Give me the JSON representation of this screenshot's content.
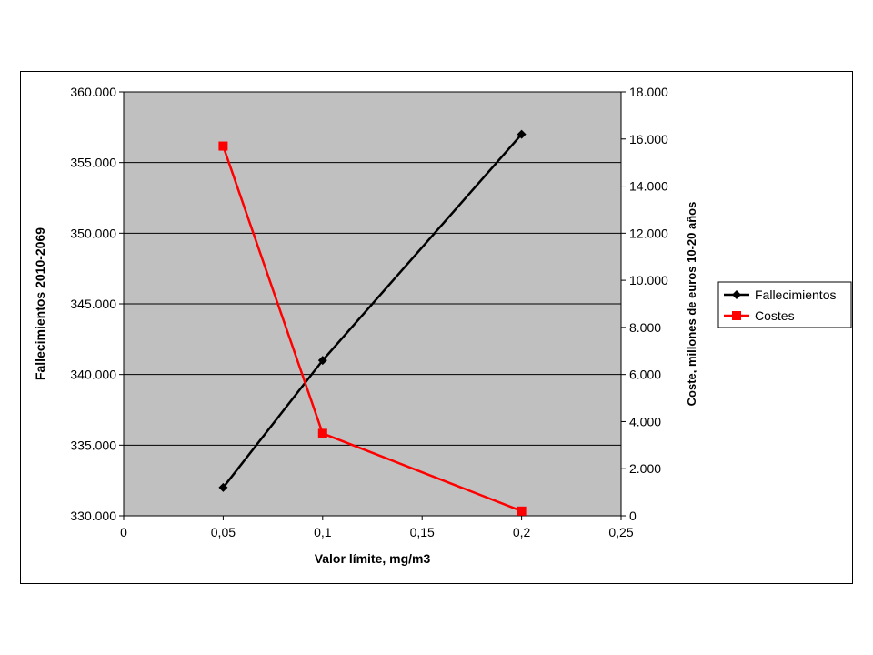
{
  "chart_data": {
    "type": "line",
    "xlabel": "Valor límite, mg/m3",
    "ylabel_left": "Fallecimientos 2010-2069",
    "ylabel_right": "Coste, millones de euros 10-20 años",
    "x_ticks": [
      "0",
      "0,05",
      "0,1",
      "0,15",
      "0,2",
      "0,25"
    ],
    "xlim": [
      0,
      0.25
    ],
    "y_left_ticks": [
      "330.000",
      "335.000",
      "340.000",
      "345.000",
      "350.000",
      "355.000",
      "360.000"
    ],
    "ylim_left": [
      330000,
      360000
    ],
    "y_right_ticks": [
      "0",
      "2.000",
      "4.000",
      "6.000",
      "8.000",
      "10.000",
      "12.000",
      "14.000",
      "16.000",
      "18.000"
    ],
    "ylim_right": [
      0,
      18000
    ],
    "plot_background": "#c0c0c0",
    "grid": "horizontal",
    "legend_position": "right",
    "series": [
      {
        "name": "Fallecimientos",
        "axis": "left",
        "color": "#000000",
        "marker": "diamond",
        "x": [
          0.05,
          0.1,
          0.2
        ],
        "y": [
          332000,
          341000,
          357000
        ]
      },
      {
        "name": "Costes",
        "axis": "right",
        "color": "#ff0000",
        "marker": "square",
        "x": [
          0.05,
          0.1,
          0.2
        ],
        "y": [
          15700,
          3500,
          200
        ]
      }
    ]
  }
}
